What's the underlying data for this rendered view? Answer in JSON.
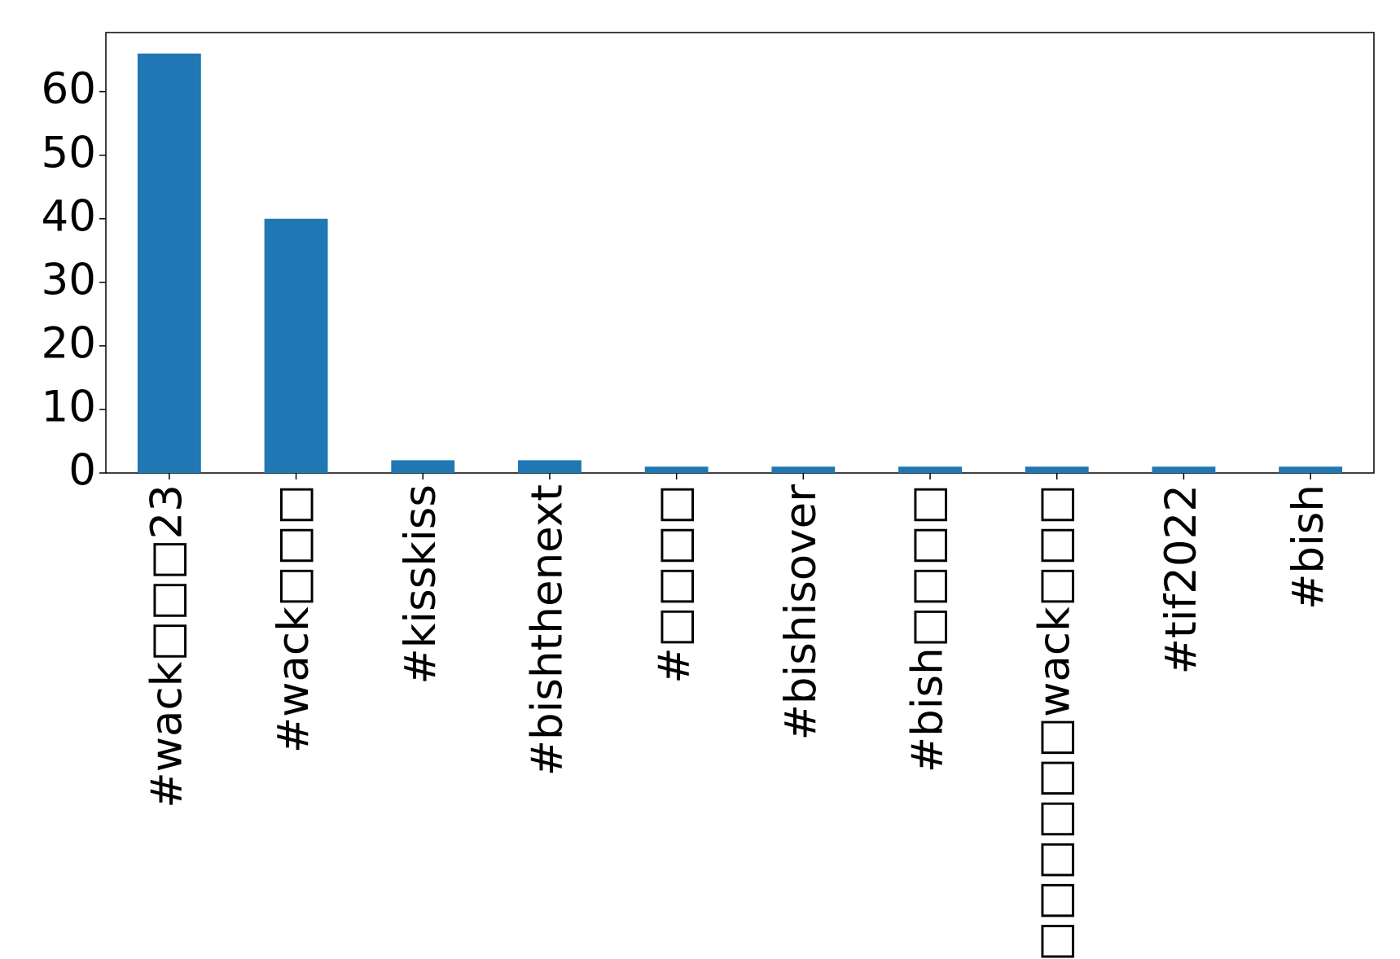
{
  "chart_data": {
    "type": "bar",
    "categories": [
      "#wack□□□23",
      "#wack□□□",
      "#kisskiss",
      "#bishthenext",
      "#□□□□",
      "#bishisover",
      "#bish□□□□",
      "#□□□□□□wack□□□",
      "#tif2022",
      "#bish"
    ],
    "values": [
      66,
      40,
      2,
      2,
      1,
      1,
      1,
      1,
      1,
      1
    ],
    "color": "#1f77b4",
    "ylim": [
      0,
      69.3
    ],
    "yticks": [
      0,
      10,
      20,
      30,
      40,
      50,
      60
    ],
    "grid": false
  }
}
